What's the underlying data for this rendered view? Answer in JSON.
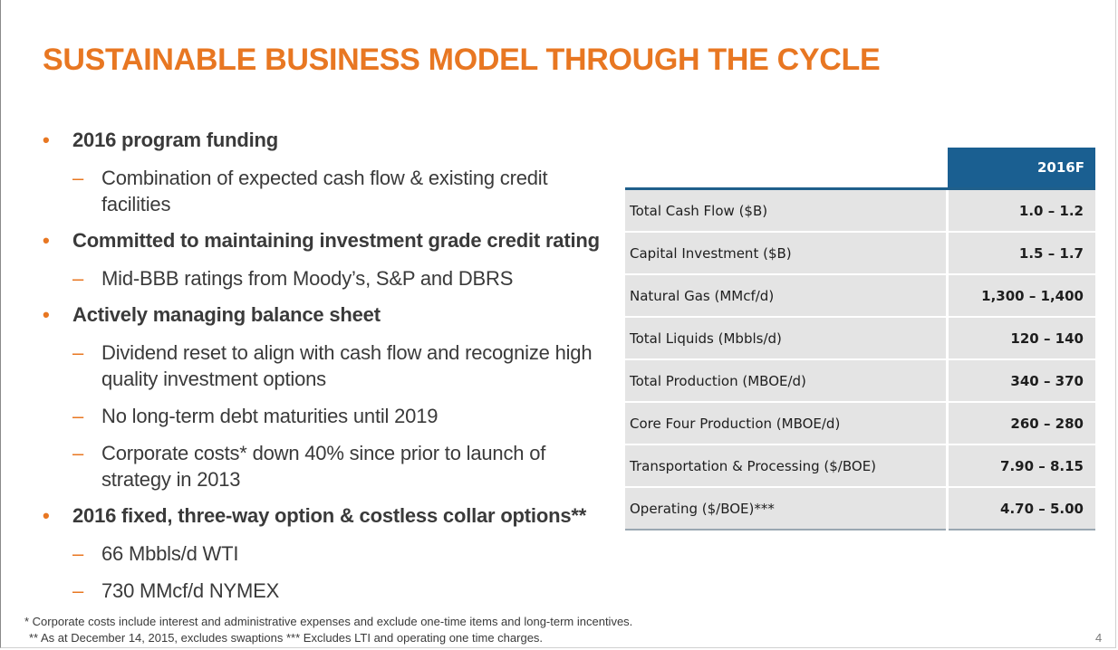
{
  "slide": {
    "title": "SUSTAINABLE BUSINESS MODEL THROUGH THE CYCLE",
    "page_number": "4",
    "accent_color": "#e87722",
    "table_header_color": "#1a5f91"
  },
  "bullets": [
    {
      "level": 1,
      "text": "2016 program funding"
    },
    {
      "level": 2,
      "text": "Combination of expected cash flow & existing credit facilities"
    },
    {
      "level": 1,
      "text": "Committed to maintaining investment grade credit rating"
    },
    {
      "level": 2,
      "text": "Mid-BBB ratings from Moody’s, S&P and DBRS"
    },
    {
      "level": 1,
      "text": "Actively managing balance sheet"
    },
    {
      "level": 2,
      "text": "Dividend reset to align with cash flow and recognize high quality investment options"
    },
    {
      "level": 2,
      "text": "No long-term debt maturities until 2019"
    },
    {
      "level": 2,
      "text": "Corporate costs* down 40% since prior to launch of strategy in 2013"
    },
    {
      "level": 1,
      "text": "2016 fixed, three-way option & costless collar options**"
    },
    {
      "level": 2,
      "text": "66 Mbbls/d WTI"
    },
    {
      "level": 2,
      "text": "730 MMcf/d NYMEX"
    }
  ],
  "table": {
    "header": "2016F",
    "rows": [
      {
        "label": "Total Cash Flow ($B)",
        "value": "1.0 – 1.2"
      },
      {
        "label": "Capital Investment ($B)",
        "value": "1.5 – 1.7"
      },
      {
        "label": "Natural Gas (MMcf/d)",
        "value": "1,300 – 1,400"
      },
      {
        "label": "Total Liquids (Mbbls/d)",
        "value": "120 – 140"
      },
      {
        "label": "Total Production (MBOE/d)",
        "value": "340 – 370"
      },
      {
        "label": "Core Four Production (MBOE/d)",
        "value": "260 – 280"
      },
      {
        "label": "Transportation & Processing ($/BOE)",
        "value": "7.90 – 8.15"
      },
      {
        "label": "Operating ($/BOE)***",
        "value": "4.70 – 5.00"
      }
    ]
  },
  "footnotes": {
    "line1": "* Corporate costs include interest and administrative expenses and exclude one-time items and long-term incentives.",
    "line2": "** As at December 14, 2015, excludes swaptions *** Excludes LTI and operating one time charges."
  }
}
